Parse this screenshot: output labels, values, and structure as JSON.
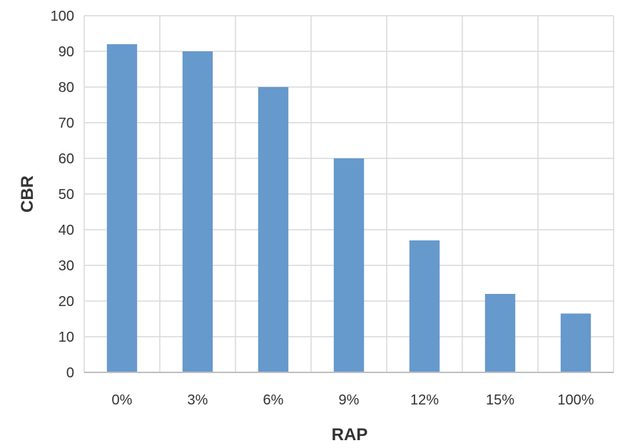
{
  "chart_data": {
    "type": "bar",
    "title": "",
    "xlabel": "RAP",
    "ylabel": "CBR",
    "categories": [
      "0%",
      "3%",
      "6%",
      "9%",
      "12%",
      "15%",
      "100%"
    ],
    "values": [
      92,
      90,
      80,
      60,
      37,
      22,
      16.5
    ],
    "ylim": [
      0,
      100
    ],
    "yticks": [
      0,
      10,
      20,
      30,
      40,
      50,
      60,
      70,
      80,
      90,
      100
    ],
    "grid": true,
    "legend": "none",
    "colors": {
      "bar": "#6699cc",
      "grid": "#d9d9d9",
      "axis": "#bfbfbf"
    }
  }
}
